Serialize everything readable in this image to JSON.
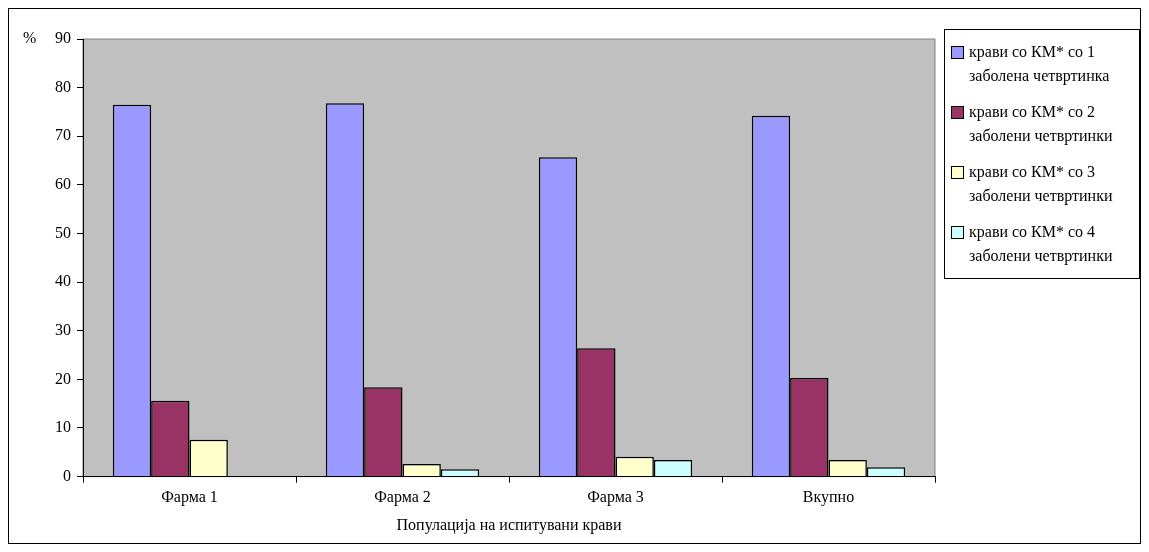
{
  "chart_data": {
    "type": "bar",
    "ylabel": "%",
    "xlabel": "Популација на испитувани крави",
    "categories": [
      "Фарма 1",
      "Фарма 2",
      "Фарма 3",
      "Вкупно"
    ],
    "series": [
      {
        "name": "крави со КМ* со 1 заболена четвртинка",
        "color": "#9999ff",
        "values": [
          76.5,
          76.8,
          65.7,
          74.2
        ]
      },
      {
        "name": "крави со КМ* со 2 заболени четвртинки",
        "color": "#993366",
        "values": [
          15.6,
          18.4,
          26.4,
          20.3
        ]
      },
      {
        "name": "крави со КМ* со 3 заболени четвртинки",
        "color": "#ffffcc",
        "values": [
          7.6,
          2.6,
          4.1,
          3.4
        ]
      },
      {
        "name": "крави со КМ* со 4 заболени четвртинки",
        "color": "#ccffff",
        "values": [
          null,
          1.5,
          3.4,
          1.9
        ]
      }
    ],
    "ylim": [
      0,
      90
    ],
    "yticks": [
      0,
      10,
      20,
      30,
      40,
      50,
      60,
      70,
      80,
      90
    ],
    "grid": false,
    "legend": "right"
  }
}
